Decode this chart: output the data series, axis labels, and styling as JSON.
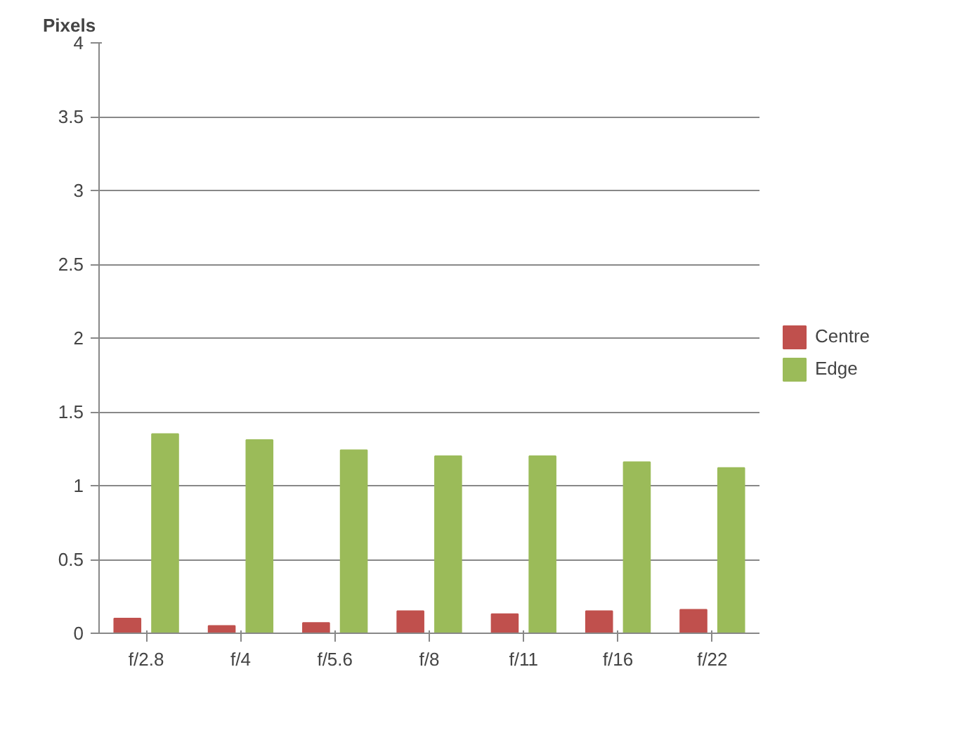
{
  "chart_data": {
    "type": "bar",
    "ylabel": "Pixels",
    "categories": [
      "f/2.8",
      "f/4",
      "f/5.6",
      "f/8",
      "f/11",
      "f/16",
      "f/22"
    ],
    "series": [
      {
        "name": "Centre",
        "color": "#c0504d",
        "values": [
          0.1,
          0.05,
          0.07,
          0.15,
          0.13,
          0.15,
          0.16
        ]
      },
      {
        "name": "Edge",
        "color": "#9bbb59",
        "values": [
          1.35,
          1.31,
          1.24,
          1.2,
          1.2,
          1.16,
          1.12
        ]
      }
    ],
    "ylim": [
      0,
      4
    ],
    "yticks": [
      0,
      0.5,
      1,
      1.5,
      2,
      2.5,
      3,
      3.5,
      4
    ],
    "grid": "y",
    "legend": "right"
  }
}
